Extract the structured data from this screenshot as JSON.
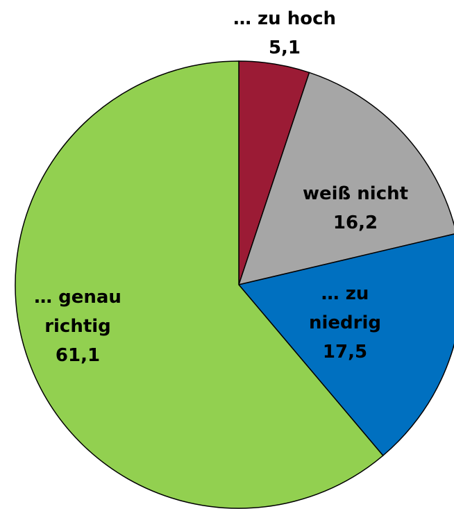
{
  "chart_data": {
    "type": "pie",
    "categories": [
      "… zu hoch",
      "weiß nicht",
      "… zu niedrig",
      "… genau richtig"
    ],
    "values": [
      5.1,
      16.2,
      17.5,
      61.1
    ],
    "value_labels": [
      "5,1",
      "16,2",
      "17,5",
      "61,1"
    ],
    "colors": [
      "#9b1b35",
      "#a6a6a6",
      "#0070c0",
      "#92d050"
    ]
  }
}
